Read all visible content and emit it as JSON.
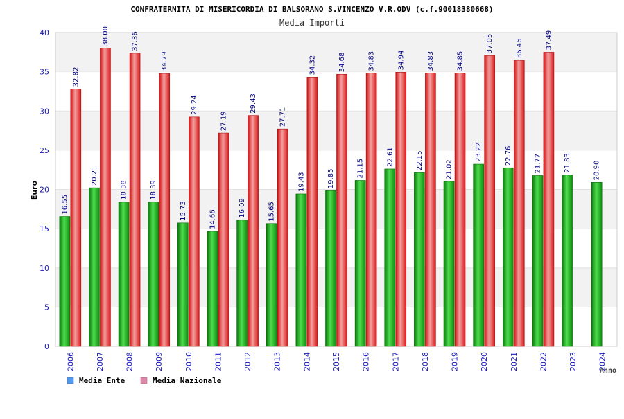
{
  "chart_data": {
    "type": "bar",
    "title": "CONFRATERNITA DI MISERICORDIA DI BALSORANO S.VINCENZO V.R.ODV (c.f.90018380668)",
    "subtitle": "Media Importi",
    "ylabel": "Euro",
    "xlabel": "Anno",
    "ylim": [
      0,
      40
    ],
    "yticks": [
      0,
      5,
      10,
      15,
      20,
      25,
      30,
      35,
      40
    ],
    "grid": "horizontal bands",
    "legend_position": "bottom-left",
    "categories": [
      "2006",
      "2007",
      "2008",
      "2009",
      "2010",
      "2011",
      "2012",
      "2013",
      "2014",
      "2015",
      "2016",
      "2017",
      "2018",
      "2019",
      "2020",
      "2021",
      "2022",
      "2023",
      "2024"
    ],
    "series": [
      {
        "name": "Media Ente",
        "color": "#22aa22",
        "legend_color": "#5599ee",
        "values": [
          16.55,
          20.21,
          18.38,
          18.39,
          15.73,
          14.66,
          16.09,
          15.65,
          19.43,
          19.85,
          21.15,
          22.61,
          22.15,
          21.02,
          23.22,
          22.76,
          21.77,
          21.83,
          20.9
        ],
        "labels": [
          "16.55",
          "20.21",
          "18.38",
          "18.39",
          "15.73",
          "14.66",
          "16.09",
          "15.65",
          "19.43",
          "19.85",
          "21.15",
          "22.61",
          "22.15",
          "21.02",
          "23.22",
          "22.76",
          "21.77",
          "21.83",
          "20.90"
        ]
      },
      {
        "name": "Media Nazionale",
        "color": "#ee2222",
        "legend_color": "#dd88aa",
        "values": [
          32.82,
          38.0,
          37.36,
          34.79,
          29.24,
          27.19,
          29.43,
          27.71,
          34.32,
          34.68,
          34.83,
          34.94,
          34.83,
          34.85,
          37.05,
          36.46,
          37.49,
          null,
          null
        ],
        "labels": [
          "32.82",
          "38.00",
          "37.36",
          "34.79",
          "29.24",
          "27.19",
          "29.43",
          "27.71",
          "34.32",
          "34.68",
          "34.83",
          "34.94",
          "34.83",
          "34.85",
          "37.05",
          "36.46",
          "37.49",
          "",
          ""
        ]
      }
    ]
  }
}
